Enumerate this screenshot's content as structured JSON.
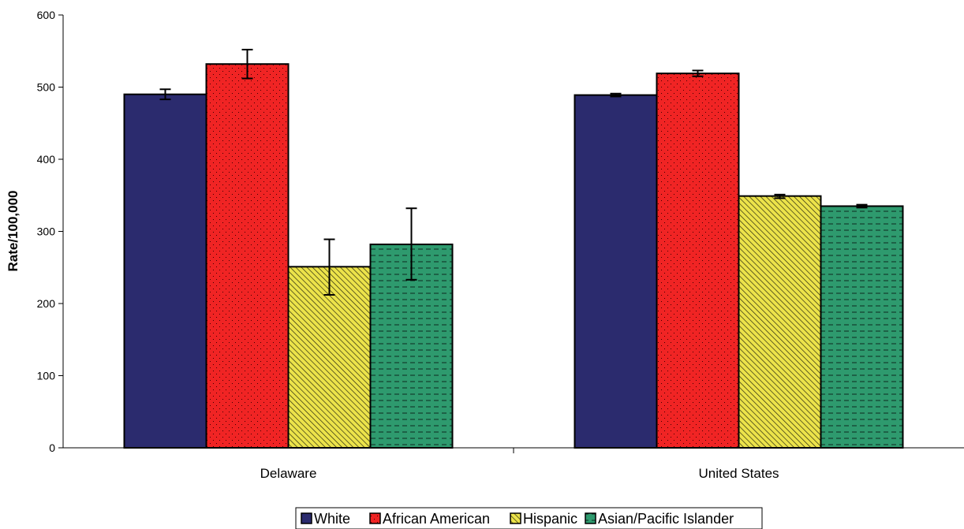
{
  "chart_data": {
    "type": "bar",
    "title": "",
    "xlabel": "",
    "ylabel": "Rate/100,000",
    "ylim": [
      0,
      600
    ],
    "yticks": [
      0,
      100,
      200,
      300,
      400,
      500,
      600
    ],
    "grid": false,
    "legend_position": "bottom",
    "categories": [
      "Delaware",
      "United States"
    ],
    "series": [
      {
        "name": "White",
        "color": "#2b2b6e",
        "pattern": "solid",
        "values": [
          490,
          489
        ],
        "error_low": [
          483,
          487
        ],
        "error_high": [
          497,
          491
        ]
      },
      {
        "name": "African American",
        "color": "#f02424",
        "pattern": "dots",
        "values": [
          532,
          519
        ],
        "error_low": [
          512,
          515
        ],
        "error_high": [
          552,
          523
        ]
      },
      {
        "name": "Hispanic",
        "color": "#e6e040",
        "pattern": "diagonal",
        "values": [
          251,
          349
        ],
        "error_low": [
          212,
          346
        ],
        "error_high": [
          289,
          351
        ]
      },
      {
        "name": "Asian/Pacific Islander",
        "color": "#2e9a6e",
        "pattern": "dashes",
        "values": [
          282,
          335
        ],
        "error_low": [
          233,
          333
        ],
        "error_high": [
          332,
          337
        ]
      }
    ]
  }
}
